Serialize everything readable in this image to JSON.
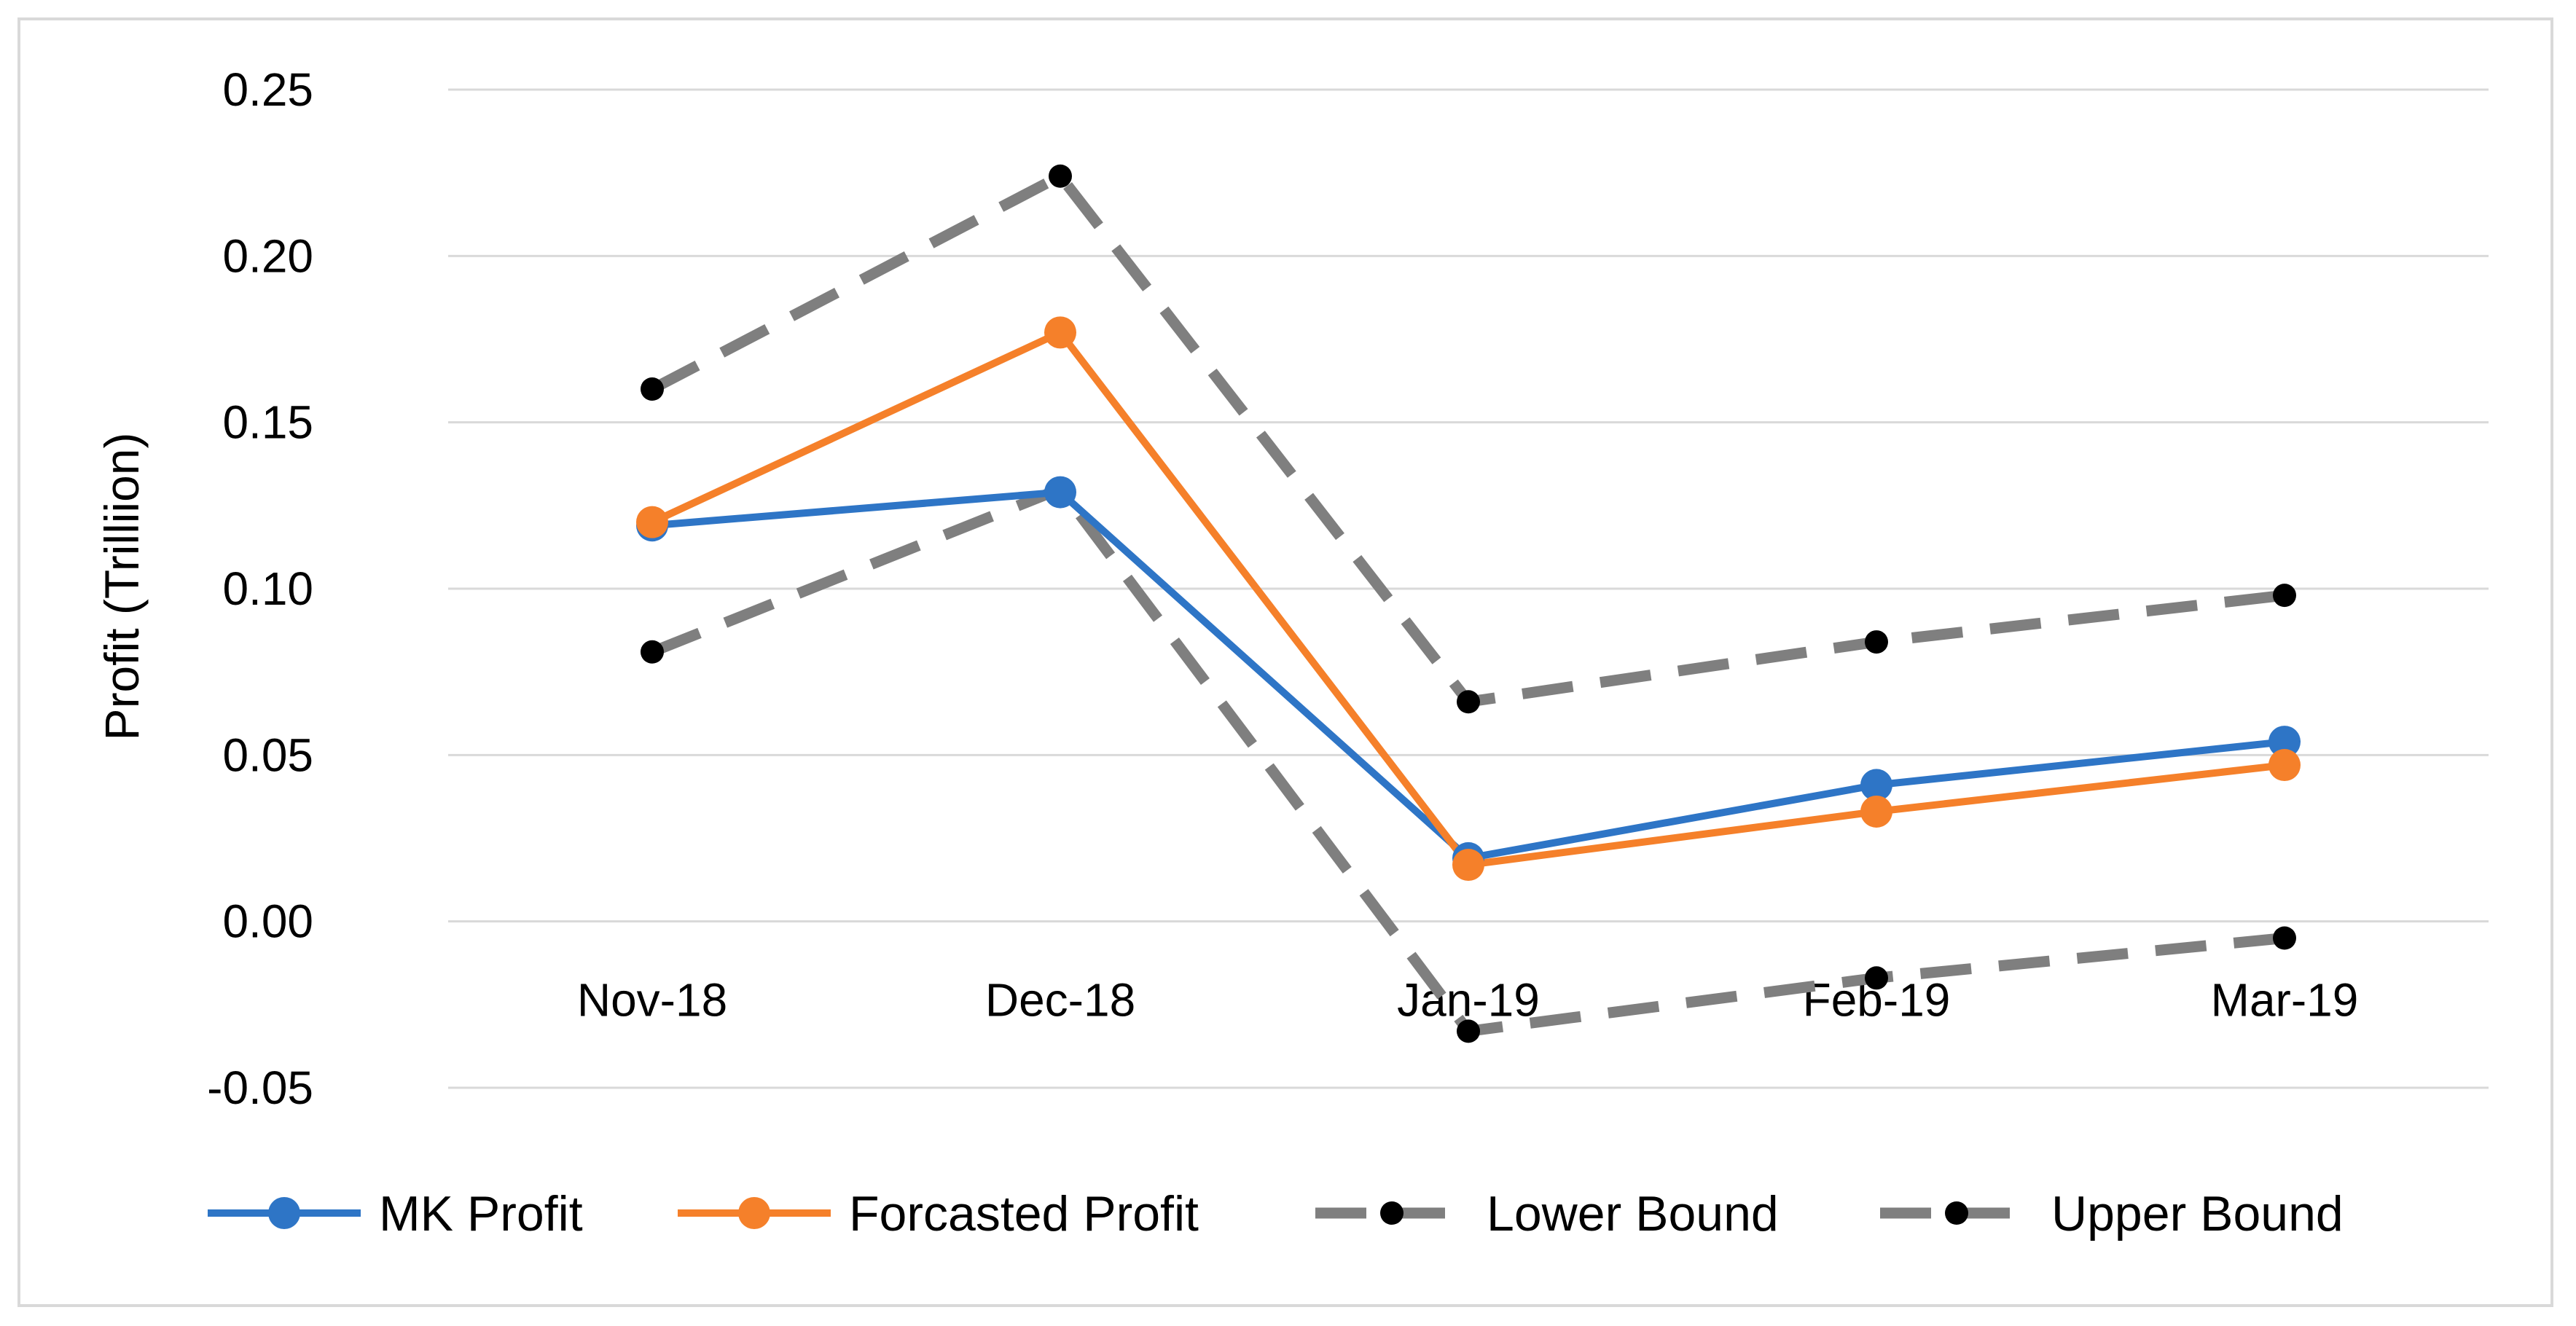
{
  "chart_data": {
    "type": "line",
    "title": "",
    "xlabel": "",
    "ylabel": "Profit (Trilliion)",
    "categories": [
      "Nov-18",
      "Dec-18",
      "Jan-19",
      "Feb-19",
      "Mar-19"
    ],
    "ylim": [
      -0.05,
      0.25
    ],
    "yticks": [
      "0.25",
      "0.20",
      "0.15",
      "0.10",
      "0.05",
      "0.00",
      "-0.05"
    ],
    "ytick_values": [
      0.25,
      0.2,
      0.15,
      0.1,
      0.05,
      0.0,
      -0.05
    ],
    "grid": true,
    "legend_position": "bottom",
    "series": [
      {
        "name": "MK Profit",
        "color": "#2e75c6",
        "style": "solid",
        "marker": "circle",
        "values": [
          0.119,
          0.129,
          0.019,
          0.041,
          0.054
        ]
      },
      {
        "name": "Forcasted Profit",
        "color": "#f5802a",
        "style": "solid",
        "marker": "circle",
        "values": [
          0.12,
          0.177,
          0.017,
          0.033,
          0.047
        ]
      },
      {
        "name": "Lower Bound",
        "color": "#7f7f7f",
        "marker_color": "#000000",
        "style": "dashed",
        "marker": "dot",
        "values": [
          0.081,
          0.13,
          -0.033,
          -0.017,
          -0.005
        ]
      },
      {
        "name": "Upper Bound",
        "color": "#7f7f7f",
        "marker_color": "#000000",
        "style": "dashed",
        "marker": "dot",
        "values": [
          0.16,
          0.224,
          0.066,
          0.084,
          0.098
        ]
      }
    ]
  }
}
